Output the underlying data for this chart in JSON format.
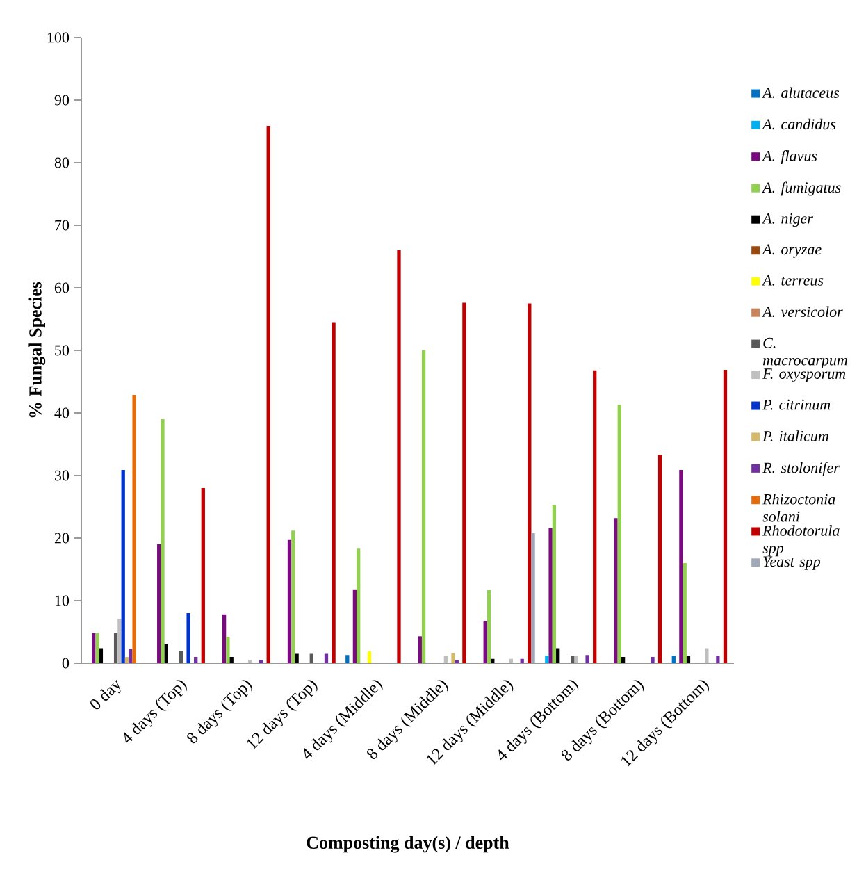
{
  "chart_data": {
    "type": "bar",
    "xlabel": "Composting day(s) / depth",
    "ylabel": "% Fungal Species",
    "categories": [
      "0 day",
      "4 days (Top)",
      "8 days (Top)",
      "12 days (Top)",
      "4 days (Middle)",
      "8 days (Middle)",
      "12 days (Middle)",
      "4 days (Bottom)",
      "8 days (Bottom)",
      "12 days (Bottom)"
    ],
    "series": [
      {
        "name": "*A. alutaceus*",
        "color": "#0070c0",
        "values": [
          0,
          0,
          0,
          0,
          1.3,
          0,
          0,
          0,
          0,
          1.2
        ]
      },
      {
        "name": "*A. candidus*",
        "color": "#00b0f0",
        "values": [
          0,
          0,
          0,
          0,
          0,
          0,
          0,
          1.2,
          0,
          0
        ]
      },
      {
        "name": "*A. flavus*",
        "color": "#7a0a80",
        "values": [
          4.8,
          19.0,
          7.8,
          19.7,
          11.8,
          4.3,
          6.7,
          21.6,
          23.2,
          30.9
        ]
      },
      {
        "name": "*A. fumigatus*",
        "color": "#92d050",
        "values": [
          4.8,
          39.0,
          4.2,
          21.2,
          18.3,
          50.0,
          11.7,
          25.3,
          41.3,
          16.0
        ]
      },
      {
        "name": "*A. niger*",
        "color": "#000000",
        "values": [
          2.4,
          3.0,
          1.0,
          1.5,
          0,
          0,
          0.7,
          2.4,
          1.0,
          1.2
        ]
      },
      {
        "name": "*A. oryzae*",
        "color": "#994a10",
        "values": [
          0,
          0,
          0,
          0,
          0,
          0,
          0,
          0,
          0,
          0
        ]
      },
      {
        "name": "*A. terreus*",
        "color": "#ffff00",
        "values": [
          0,
          0,
          0,
          0,
          1.9,
          0,
          0,
          0,
          0,
          0
        ]
      },
      {
        "name": "*A. versicolor*",
        "color": "#c8845a",
        "values": [
          0,
          0,
          0,
          0,
          0,
          0,
          0,
          0,
          0,
          0
        ]
      },
      {
        "name": "*C. macrocarpum*",
        "color": "#595959",
        "values": [
          4.8,
          2.0,
          0,
          1.5,
          0,
          0,
          0,
          1.2,
          0,
          0
        ]
      },
      {
        "name": "*F. oxysporum*",
        "color": "#bfbfbf",
        "values": [
          7.1,
          0,
          0.5,
          0,
          0,
          1.1,
          0.7,
          1.2,
          0,
          2.4
        ]
      },
      {
        "name": "*P. citrinum*",
        "color": "#0033cc",
        "values": [
          30.9,
          8.0,
          0,
          0,
          0,
          0,
          0,
          0,
          0,
          0
        ]
      },
      {
        "name": "*P. italicum*",
        "color": "#d4b96a",
        "values": [
          1.0,
          0,
          0,
          0,
          0,
          1.6,
          0,
          0,
          0,
          0
        ]
      },
      {
        "name": "*R. stolonifer*",
        "color": "#7030a0",
        "values": [
          2.3,
          1.0,
          0.5,
          1.5,
          0,
          0.5,
          0.7,
          1.3,
          1.0,
          1.2
        ]
      },
      {
        "name": "*Rhizoctonia solani*",
        "color": "#e46c0a",
        "values": [
          42.9,
          0,
          0,
          0,
          0,
          0,
          0,
          0,
          0,
          0
        ]
      },
      {
        "name": "*Rhodotorula spp*",
        "color": "#c00000",
        "values": [
          0,
          28.0,
          85.9,
          54.5,
          66.0,
          57.6,
          57.5,
          46.8,
          33.3,
          46.9
        ]
      },
      {
        "name": "*Yeast spp*",
        "color": "#a0a8b8",
        "values": [
          0,
          0,
          0,
          0,
          0,
          0,
          20.8,
          0,
          0,
          0
        ]
      }
    ],
    "ylim": [
      0,
      100
    ],
    "yticks": [
      0,
      10,
      20,
      30,
      40,
      50,
      60,
      70,
      80,
      90,
      100
    ],
    "legend": "right"
  }
}
